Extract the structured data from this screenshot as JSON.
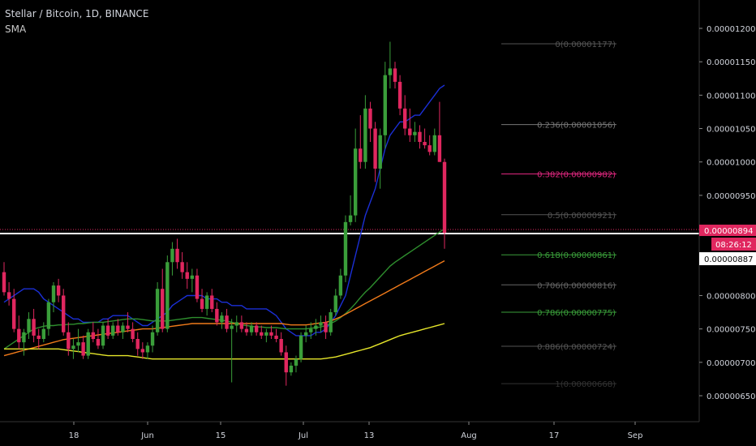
{
  "header": {
    "symbol": "Stellar / Bitcoin, 1D, BINANCE",
    "indicator": "SMA"
  },
  "colors": {
    "background": "#000000",
    "up_candle": "#3a9e3a",
    "down_candle": "#e0275f",
    "sma_fast": "#1b2fd6",
    "sma_mid": "#2e8f2e",
    "sma_slow": "#f07a1a",
    "sma_long": "#e6e62a",
    "price_line": "#ffffff",
    "axis_text": "#d1d4dc",
    "price_badge": "#e0275f"
  },
  "chart_data": {
    "type": "candlestick",
    "title": "Stellar / Bitcoin, 1D, BINANCE",
    "ylim": [
      6.2e-06,
      1.22e-05
    ],
    "x_ticks": [
      "18",
      "Jun",
      "15",
      "Jul",
      "13",
      "Aug",
      "17",
      "Sep"
    ],
    "y_ticks": [
      "0.00001200",
      "0.00001150",
      "0.00001100",
      "0.00001050",
      "0.00001000",
      "0.00000950",
      "0.00000800",
      "0.00000750",
      "0.00000700",
      "0.00000650"
    ],
    "current_price": "0.00000894",
    "countdown": "08:26:12",
    "reference_price": "0.00000887",
    "candles": [
      {
        "o": 8.35,
        "h": 8.5,
        "l": 8.0,
        "c": 8.05
      },
      {
        "o": 8.05,
        "h": 8.2,
        "l": 7.85,
        "c": 7.95
      },
      {
        "o": 7.95,
        "h": 8.1,
        "l": 7.45,
        "c": 7.5
      },
      {
        "o": 7.5,
        "h": 7.7,
        "l": 7.2,
        "c": 7.3
      },
      {
        "o": 7.3,
        "h": 7.5,
        "l": 7.1,
        "c": 7.45
      },
      {
        "o": 7.45,
        "h": 7.75,
        "l": 7.35,
        "c": 7.65
      },
      {
        "o": 7.65,
        "h": 7.8,
        "l": 7.3,
        "c": 7.4
      },
      {
        "o": 7.4,
        "h": 7.5,
        "l": 7.2,
        "c": 7.35
      },
      {
        "o": 7.35,
        "h": 7.6,
        "l": 7.3,
        "c": 7.5
      },
      {
        "o": 7.5,
        "h": 7.95,
        "l": 7.4,
        "c": 7.9
      },
      {
        "o": 7.9,
        "h": 8.2,
        "l": 7.75,
        "c": 8.15
      },
      {
        "o": 8.15,
        "h": 8.25,
        "l": 7.9,
        "c": 8.0
      },
      {
        "o": 8.0,
        "h": 8.1,
        "l": 7.4,
        "c": 7.45
      },
      {
        "o": 7.45,
        "h": 7.6,
        "l": 7.1,
        "c": 7.2
      },
      {
        "o": 7.2,
        "h": 7.35,
        "l": 7.05,
        "c": 7.25
      },
      {
        "o": 7.25,
        "h": 7.5,
        "l": 7.15,
        "c": 7.3
      },
      {
        "o": 7.3,
        "h": 7.4,
        "l": 7.05,
        "c": 7.1
      },
      {
        "o": 7.1,
        "h": 7.5,
        "l": 7.05,
        "c": 7.45
      },
      {
        "o": 7.45,
        "h": 7.6,
        "l": 7.3,
        "c": 7.35
      },
      {
        "o": 7.35,
        "h": 7.5,
        "l": 7.2,
        "c": 7.25
      },
      {
        "o": 7.25,
        "h": 7.6,
        "l": 7.2,
        "c": 7.55
      },
      {
        "o": 7.55,
        "h": 7.65,
        "l": 7.35,
        "c": 7.4
      },
      {
        "o": 7.4,
        "h": 7.6,
        "l": 7.35,
        "c": 7.55
      },
      {
        "o": 7.55,
        "h": 7.65,
        "l": 7.4,
        "c": 7.45
      },
      {
        "o": 7.45,
        "h": 7.6,
        "l": 7.35,
        "c": 7.55
      },
      {
        "o": 7.55,
        "h": 7.75,
        "l": 7.45,
        "c": 7.5
      },
      {
        "o": 7.5,
        "h": 7.6,
        "l": 7.3,
        "c": 7.35
      },
      {
        "o": 7.35,
        "h": 7.45,
        "l": 7.1,
        "c": 7.2
      },
      {
        "o": 7.2,
        "h": 7.3,
        "l": 7.05,
        "c": 7.15
      },
      {
        "o": 7.15,
        "h": 7.3,
        "l": 7.05,
        "c": 7.25
      },
      {
        "o": 7.25,
        "h": 7.55,
        "l": 7.15,
        "c": 7.45
      },
      {
        "o": 7.45,
        "h": 8.2,
        "l": 7.4,
        "c": 8.1
      },
      {
        "o": 8.1,
        "h": 8.4,
        "l": 7.45,
        "c": 7.5
      },
      {
        "o": 7.5,
        "h": 8.6,
        "l": 7.45,
        "c": 8.5
      },
      {
        "o": 8.5,
        "h": 8.8,
        "l": 8.3,
        "c": 8.7
      },
      {
        "o": 8.7,
        "h": 8.85,
        "l": 8.4,
        "c": 8.5
      },
      {
        "o": 8.5,
        "h": 8.65,
        "l": 8.25,
        "c": 8.35
      },
      {
        "o": 8.35,
        "h": 8.5,
        "l": 8.1,
        "c": 8.25
      },
      {
        "o": 8.25,
        "h": 8.4,
        "l": 8.05,
        "c": 8.3
      },
      {
        "o": 8.3,
        "h": 8.4,
        "l": 7.9,
        "c": 7.95
      },
      {
        "o": 7.95,
        "h": 8.1,
        "l": 7.75,
        "c": 7.8
      },
      {
        "o": 7.8,
        "h": 8.05,
        "l": 7.7,
        "c": 8.0
      },
      {
        "o": 8.0,
        "h": 8.1,
        "l": 7.75,
        "c": 7.8
      },
      {
        "o": 7.8,
        "h": 7.9,
        "l": 7.55,
        "c": 7.6
      },
      {
        "o": 7.6,
        "h": 7.75,
        "l": 7.5,
        "c": 7.7
      },
      {
        "o": 7.7,
        "h": 7.8,
        "l": 7.45,
        "c": 7.5
      },
      {
        "o": 7.5,
        "h": 7.65,
        "l": 6.7,
        "c": 7.55
      },
      {
        "o": 7.55,
        "h": 7.7,
        "l": 7.45,
        "c": 7.6
      },
      {
        "o": 7.6,
        "h": 7.7,
        "l": 7.45,
        "c": 7.5
      },
      {
        "o": 7.5,
        "h": 7.6,
        "l": 7.4,
        "c": 7.45
      },
      {
        "o": 7.45,
        "h": 7.6,
        "l": 7.4,
        "c": 7.55
      },
      {
        "o": 7.55,
        "h": 7.6,
        "l": 7.4,
        "c": 7.45
      },
      {
        "o": 7.45,
        "h": 7.55,
        "l": 7.35,
        "c": 7.4
      },
      {
        "o": 7.4,
        "h": 7.5,
        "l": 7.3,
        "c": 7.45
      },
      {
        "o": 7.45,
        "h": 7.55,
        "l": 7.35,
        "c": 7.4
      },
      {
        "o": 7.4,
        "h": 7.5,
        "l": 7.3,
        "c": 7.35
      },
      {
        "o": 7.35,
        "h": 7.45,
        "l": 7.1,
        "c": 7.15
      },
      {
        "o": 7.15,
        "h": 7.25,
        "l": 6.65,
        "c": 6.85
      },
      {
        "o": 6.85,
        "h": 7.0,
        "l": 6.8,
        "c": 6.95
      },
      {
        "o": 6.95,
        "h": 7.1,
        "l": 6.85,
        "c": 7.05
      },
      {
        "o": 7.05,
        "h": 7.45,
        "l": 7.0,
        "c": 7.4
      },
      {
        "o": 7.4,
        "h": 7.55,
        "l": 7.3,
        "c": 7.45
      },
      {
        "o": 7.45,
        "h": 7.6,
        "l": 7.35,
        "c": 7.5
      },
      {
        "o": 7.5,
        "h": 7.65,
        "l": 7.4,
        "c": 7.55
      },
      {
        "o": 7.55,
        "h": 7.7,
        "l": 7.45,
        "c": 7.6
      },
      {
        "o": 7.6,
        "h": 7.7,
        "l": 7.35,
        "c": 7.45
      },
      {
        "o": 7.45,
        "h": 7.8,
        "l": 7.4,
        "c": 7.75
      },
      {
        "o": 7.75,
        "h": 8.1,
        "l": 7.7,
        "c": 8.0
      },
      {
        "o": 8.0,
        "h": 8.4,
        "l": 7.95,
        "c": 8.3
      },
      {
        "o": 8.3,
        "h": 9.2,
        "l": 8.2,
        "c": 9.1
      },
      {
        "o": 9.1,
        "h": 9.5,
        "l": 9.05,
        "c": 9.2
      },
      {
        "o": 9.2,
        "h": 10.5,
        "l": 9.1,
        "c": 10.2
      },
      {
        "o": 10.2,
        "h": 10.7,
        "l": 9.9,
        "c": 10.0
      },
      {
        "o": 10.0,
        "h": 11.0,
        "l": 9.9,
        "c": 10.8
      },
      {
        "o": 10.8,
        "h": 10.9,
        "l": 10.3,
        "c": 10.5
      },
      {
        "o": 10.5,
        "h": 10.6,
        "l": 9.7,
        "c": 9.9
      },
      {
        "o": 9.9,
        "h": 10.5,
        "l": 9.6,
        "c": 10.4
      },
      {
        "o": 10.4,
        "h": 11.5,
        "l": 10.2,
        "c": 11.3
      },
      {
        "o": 11.3,
        "h": 11.8,
        "l": 11.1,
        "c": 11.4
      },
      {
        "o": 11.4,
        "h": 11.5,
        "l": 11.1,
        "c": 11.2
      },
      {
        "o": 11.2,
        "h": 11.3,
        "l": 10.7,
        "c": 10.8
      },
      {
        "o": 10.8,
        "h": 11.0,
        "l": 10.4,
        "c": 10.5
      },
      {
        "o": 10.5,
        "h": 10.8,
        "l": 10.3,
        "c": 10.4
      },
      {
        "o": 10.4,
        "h": 10.6,
        "l": 10.3,
        "c": 10.45
      },
      {
        "o": 10.45,
        "h": 10.55,
        "l": 10.2,
        "c": 10.3
      },
      {
        "o": 10.3,
        "h": 10.5,
        "l": 10.2,
        "c": 10.25
      },
      {
        "o": 10.25,
        "h": 10.4,
        "l": 10.1,
        "c": 10.15
      },
      {
        "o": 10.15,
        "h": 10.5,
        "l": 10.1,
        "c": 10.4
      },
      {
        "o": 10.4,
        "h": 10.9,
        "l": 10.0,
        "c": 10.0
      },
      {
        "o": 10.0,
        "h": 10.05,
        "l": 8.7,
        "c": 8.94
      }
    ],
    "sma_series": [
      {
        "color": "#1b2fd6",
        "values": [
          7.9,
          7.95,
          8.0,
          8.05,
          8.1,
          8.1,
          8.1,
          8.05,
          7.95,
          7.9,
          7.85,
          7.8,
          7.75,
          7.7,
          7.65,
          7.65,
          7.6,
          7.6,
          7.6,
          7.6,
          7.65,
          7.65,
          7.7,
          7.7,
          7.7,
          7.7,
          7.65,
          7.6,
          7.55,
          7.55,
          7.6,
          7.65,
          7.7,
          7.75,
          7.85,
          7.9,
          7.95,
          8.0,
          8.0,
          8.0,
          8.0,
          7.95,
          7.95,
          7.95,
          7.9,
          7.9,
          7.85,
          7.85,
          7.85,
          7.8,
          7.8,
          7.8,
          7.8,
          7.8,
          7.75,
          7.7,
          7.6,
          7.5,
          7.45,
          7.4,
          7.4,
          7.4,
          7.4,
          7.45,
          7.45,
          7.5,
          7.6,
          7.7,
          7.85,
          8.0,
          8.3,
          8.6,
          8.9,
          9.2,
          9.4,
          9.6,
          9.9,
          10.2,
          10.4,
          10.5,
          10.6,
          10.6,
          10.65,
          10.7,
          10.7,
          10.8,
          10.9,
          11.0,
          11.1,
          11.15
        ]
      },
      {
        "color": "#2e8f2e",
        "values": [
          7.2,
          7.25,
          7.3,
          7.35,
          7.4,
          7.45,
          7.5,
          7.52,
          7.54,
          7.55,
          7.55,
          7.56,
          7.56,
          7.57,
          7.57,
          7.58,
          7.58,
          7.59,
          7.6,
          7.6,
          7.6,
          7.61,
          7.62,
          7.63,
          7.64,
          7.65,
          7.65,
          7.65,
          7.64,
          7.63,
          7.62,
          7.62,
          7.62,
          7.62,
          7.63,
          7.64,
          7.65,
          7.66,
          7.67,
          7.67,
          7.67,
          7.66,
          7.65,
          7.64,
          7.63,
          7.62,
          7.6,
          7.58,
          7.56,
          7.55,
          7.54,
          7.53,
          7.53,
          7.52,
          7.52,
          7.52,
          7.51,
          7.5,
          7.5,
          7.5,
          7.5,
          7.5,
          7.51,
          7.52,
          7.53,
          7.55,
          7.58,
          7.62,
          7.67,
          7.73,
          7.8,
          7.88,
          7.97,
          8.05,
          8.12,
          8.2,
          8.28,
          8.36,
          8.44,
          8.5,
          8.55,
          8.6,
          8.65,
          8.7,
          8.75,
          8.8,
          8.85,
          8.9,
          8.95,
          9.0
        ]
      },
      {
        "color": "#f07a1a",
        "values": [
          7.1,
          7.12,
          7.14,
          7.16,
          7.18,
          7.2,
          7.22,
          7.24,
          7.26,
          7.28,
          7.3,
          7.32,
          7.34,
          7.35,
          7.36,
          7.37,
          7.38,
          7.39,
          7.4,
          7.41,
          7.42,
          7.43,
          7.44,
          7.45,
          7.46,
          7.47,
          7.48,
          7.49,
          7.5,
          7.5,
          7.5,
          7.51,
          7.52,
          7.53,
          7.54,
          7.55,
          7.56,
          7.57,
          7.58,
          7.58,
          7.58,
          7.58,
          7.58,
          7.58,
          7.58,
          7.58,
          7.58,
          7.58,
          7.58,
          7.58,
          7.58,
          7.58,
          7.58,
          7.58,
          7.58,
          7.58,
          7.58,
          7.57,
          7.56,
          7.56,
          7.56,
          7.56,
          7.57,
          7.58,
          7.59,
          7.6,
          7.62,
          7.65,
          7.68,
          7.72,
          7.76,
          7.8,
          7.84,
          7.88,
          7.92,
          7.96,
          8.0,
          8.04,
          8.08,
          8.12,
          8.16,
          8.2,
          8.24,
          8.28,
          8.32,
          8.36,
          8.4,
          8.44,
          8.48,
          8.52
        ]
      },
      {
        "color": "#e6e62a",
        "values": [
          7.2,
          7.2,
          7.2,
          7.2,
          7.2,
          7.2,
          7.2,
          7.2,
          7.2,
          7.2,
          7.2,
          7.2,
          7.19,
          7.18,
          7.17,
          7.16,
          7.15,
          7.14,
          7.13,
          7.12,
          7.11,
          7.1,
          7.1,
          7.1,
          7.1,
          7.1,
          7.09,
          7.08,
          7.07,
          7.06,
          7.05,
          7.05,
          7.05,
          7.05,
          7.05,
          7.05,
          7.05,
          7.05,
          7.05,
          7.05,
          7.05,
          7.05,
          7.05,
          7.05,
          7.05,
          7.05,
          7.05,
          7.05,
          7.05,
          7.05,
          7.05,
          7.05,
          7.05,
          7.05,
          7.05,
          7.05,
          7.05,
          7.05,
          7.05,
          7.05,
          7.05,
          7.05,
          7.05,
          7.05,
          7.05,
          7.06,
          7.07,
          7.08,
          7.1,
          7.12,
          7.14,
          7.16,
          7.18,
          7.2,
          7.22,
          7.25,
          7.28,
          7.31,
          7.34,
          7.37,
          7.4,
          7.42,
          7.44,
          7.46,
          7.48,
          7.5,
          7.52,
          7.54,
          7.56,
          7.58
        ]
      }
    ],
    "fib_levels": [
      {
        "label": "0(0.00001177)",
        "value": 11.77,
        "color": "#555555"
      },
      {
        "label": "0.236(0.00001056)",
        "value": 10.56,
        "color": "#777777"
      },
      {
        "label": "0.382(0.00000982)",
        "value": 9.82,
        "color": "#e0277f"
      },
      {
        "label": "0.5(0.00000921)",
        "value": 9.21,
        "color": "#555555"
      },
      {
        "label": "0.618(0.00000861)",
        "value": 8.61,
        "color": "#3a9e3a"
      },
      {
        "label": "0.706(0.00000816)",
        "value": 8.16,
        "color": "#666666"
      },
      {
        "label": "0.786(0.00000775)",
        "value": 7.75,
        "color": "#3a9e3a"
      },
      {
        "label": "0.886(0.00000724)",
        "value": 7.24,
        "color": "#555555"
      },
      {
        "label": "1(0.00000668)",
        "value": 6.68,
        "color": "#333333"
      }
    ],
    "value_scale_note": "values are in units of 0.000001 BTC"
  }
}
